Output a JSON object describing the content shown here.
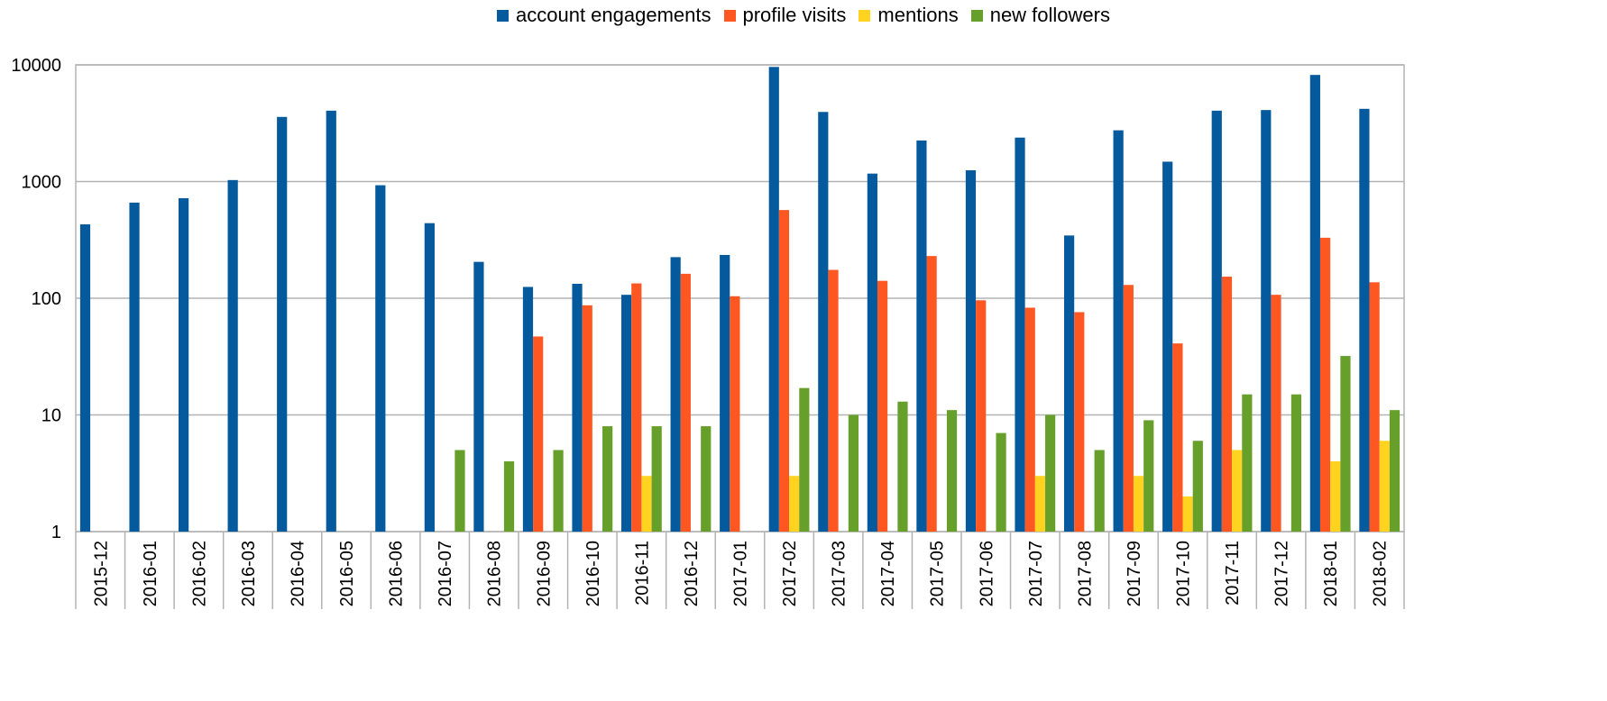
{
  "chart_data": {
    "type": "bar",
    "title": "",
    "xlabel": "",
    "ylabel": "",
    "y_scale": "log",
    "ylim": [
      1,
      10000
    ],
    "y_ticks": [
      "1",
      "10",
      "100",
      "1000",
      "10000"
    ],
    "grid": true,
    "legend_position": "top-center",
    "categories": [
      "2015-12",
      "2016-01",
      "2016-02",
      "2016-03",
      "2016-04",
      "2016-05",
      "2016-06",
      "2016-07",
      "2016-08",
      "2016-09",
      "2016-10",
      "2016-11",
      "2016-12",
      "2017-01",
      "2017-02",
      "2017-03",
      "2017-04",
      "2017-05",
      "2017-06",
      "2017-07",
      "2017-08",
      "2017-09",
      "2017-10",
      "2017-11",
      "2017-12",
      "2018-01",
      "2018-02"
    ],
    "series": [
      {
        "name": "account engagements",
        "color": "#045a9c",
        "values": [
          430,
          660,
          720,
          1030,
          3580,
          4050,
          930,
          440,
          205,
          125,
          133,
          107,
          225,
          235,
          9600,
          3950,
          1170,
          2250,
          1250,
          2380,
          345,
          2750,
          1480,
          4050,
          4100,
          8200,
          4200
        ]
      },
      {
        "name": "profile visits",
        "color": "#ff5722",
        "values": [
          null,
          null,
          null,
          null,
          null,
          null,
          null,
          null,
          null,
          47,
          87,
          134,
          162,
          104,
          570,
          175,
          141,
          230,
          96,
          83,
          76,
          130,
          41,
          153,
          107,
          330,
          137
        ]
      },
      {
        "name": "mentions",
        "color": "#ffd320",
        "values": [
          null,
          null,
          null,
          null,
          null,
          null,
          null,
          null,
          null,
          null,
          null,
          3,
          null,
          null,
          3,
          null,
          null,
          null,
          null,
          3,
          null,
          3,
          2,
          5,
          null,
          4,
          6
        ]
      },
      {
        "name": "new followers",
        "color": "#66a02a",
        "values": [
          null,
          null,
          null,
          null,
          null,
          null,
          null,
          5,
          4,
          5,
          8,
          8,
          8,
          null,
          17,
          10,
          13,
          11,
          7,
          10,
          5,
          9,
          6,
          15,
          15,
          32,
          11
        ]
      }
    ]
  }
}
